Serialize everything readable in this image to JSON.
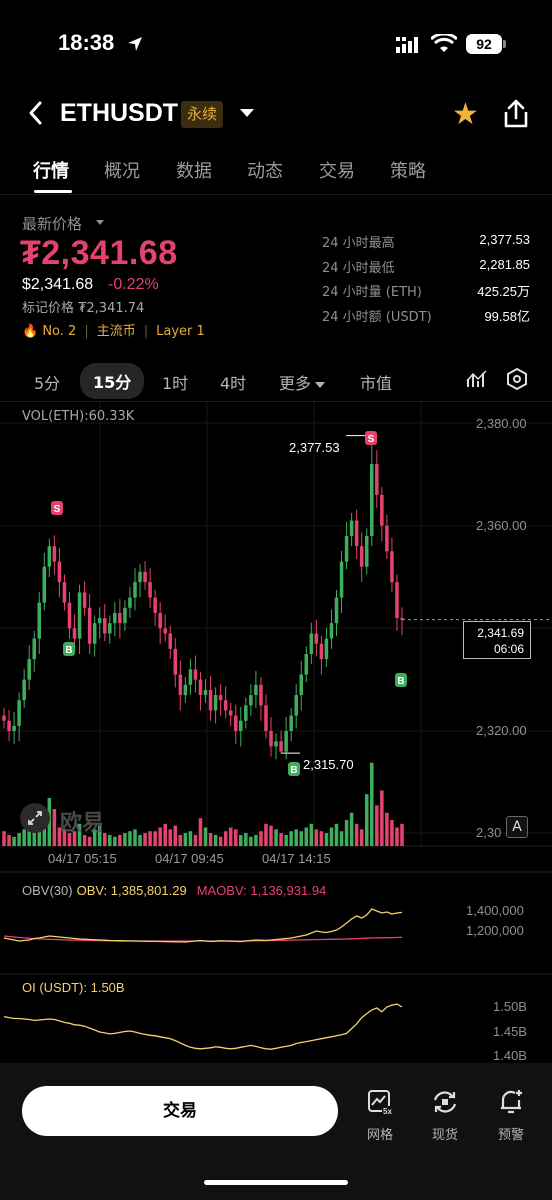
{
  "status_bar": {
    "time": "18:38",
    "battery": "92"
  },
  "header": {
    "pair": "ETHUSDT",
    "badge": "永续"
  },
  "tabs": [
    "行情",
    "概况",
    "数据",
    "动态",
    "交易",
    "策略"
  ],
  "price": {
    "label": "最新价格",
    "main": "₮2,341.68",
    "usd": "$2,341.68",
    "change": "-0.22%",
    "mark": "标记价格 ₮2,341.74",
    "tags": [
      "No. 2",
      "主流币",
      "Layer 1"
    ]
  },
  "stats": [
    {
      "label": "24 小时最高",
      "value": "2,377.53"
    },
    {
      "label": "24 小时最低",
      "value": "2,281.85"
    },
    {
      "label": "24 小时量 (ETH)",
      "value": "425.25万"
    },
    {
      "label": "24 小时额 (USDT)",
      "value": "99.58亿"
    }
  ],
  "intervals": {
    "items": [
      "5分",
      "15分",
      "1时",
      "4时",
      "更多",
      "市值"
    ],
    "active": "15分"
  },
  "chart": {
    "vol_label": "VOL(ETH):60.33K",
    "y_labels": [
      "2,380.00",
      "2,360.00",
      "2,320.00",
      "2,30"
    ],
    "x_labels": [
      "04/17 05:15",
      "04/17 09:45",
      "04/17 14:15"
    ],
    "current_price": "2,341.69",
    "countdown": "06:06",
    "high_label": "2,377.53",
    "low_label": "2,315.70",
    "watermark": "欧易",
    "a_button": "A",
    "markers": {
      "sell": "S",
      "buy": "B"
    }
  },
  "obv": {
    "title": "OBV(30)",
    "obv": "OBV: 1,385,801.29",
    "maobv": "MAOBV: 1,136,931.94",
    "y_labels": [
      "1,400,000",
      "1,200,000"
    ]
  },
  "oi": {
    "title": "OI (USDT): 1.50B",
    "y_labels": [
      "1.50B",
      "1.45B",
      "1.40B"
    ]
  },
  "bottom": {
    "trade": "交易",
    "nav": [
      "网格",
      "现货",
      "预警"
    ]
  },
  "colors": {
    "up": "#3fae5c",
    "down": "#e4436f",
    "accent": "#f3b23b"
  },
  "chart_data": {
    "type": "candlestick",
    "interval": "15m",
    "x_tick_labels": [
      "04/17 05:15",
      "04/17 09:45",
      "04/17 14:15"
    ],
    "ylim": [
      2303,
      2383
    ],
    "close_series": [
      2322,
      2320,
      2321,
      2326,
      2330,
      2334,
      2338,
      2345,
      2352,
      2356,
      2353,
      2349,
      2345,
      2340,
      2338,
      2347,
      2344,
      2337,
      2341,
      2342,
      2339,
      2341,
      2343,
      2341,
      2344,
      2346,
      2349,
      2351,
      2349,
      2346,
      2343,
      2340,
      2339,
      2336,
      2331,
      2327,
      2329,
      2332,
      2330,
      2327,
      2328,
      2324,
      2327,
      2326,
      2324,
      2323,
      2320,
      2322,
      2325,
      2327,
      2329,
      2325,
      2320,
      2317,
      2318,
      2316,
      2320,
      2323,
      2327,
      2331,
      2335,
      2339,
      2337,
      2334,
      2338,
      2341,
      2346,
      2353,
      2358,
      2361,
      2356,
      2352,
      2358,
      2372,
      2366,
      2360,
      2355,
      2349,
      2342,
      2341.68
    ],
    "volume_series": [
      8,
      6,
      5,
      7,
      9,
      12,
      10,
      18,
      14,
      26,
      20,
      10,
      9,
      7,
      8,
      12,
      6,
      5,
      9,
      11,
      7,
      6,
      5,
      6,
      7,
      8,
      9,
      6,
      7,
      8,
      8,
      10,
      12,
      9,
      11,
      6,
      7,
      8,
      6,
      15,
      10,
      7,
      6,
      5,
      8,
      10,
      9,
      6,
      7,
      5,
      6,
      8,
      12,
      11,
      9,
      7,
      6,
      8,
      9,
      8,
      10,
      12,
      9,
      8,
      7,
      10,
      12,
      8,
      14,
      18,
      12,
      9,
      28,
      45,
      22,
      30,
      18,
      14,
      10,
      12
    ],
    "obv_series": [
      1130000,
      1120000,
      1110000,
      1100000,
      1105000,
      1110000,
      1125000,
      1130000,
      1140000,
      1150000,
      1145000,
      1140000,
      1135000,
      1130000,
      1125000,
      1120000,
      1118000,
      1115000,
      1112000,
      1110000,
      1108000,
      1105000,
      1104000,
      1103000,
      1102000,
      1101000,
      1100000,
      1099000,
      1098000,
      1097000,
      1096000,
      1095000,
      1094000,
      1093000,
      1092000,
      1091000,
      1090000,
      1095000,
      1100000,
      1105000,
      1100000,
      1095000,
      1098000,
      1102000,
      1100000,
      1098000,
      1096000,
      1094000,
      1100000,
      1105000,
      1110000,
      1108000,
      1105000,
      1110000,
      1115000,
      1120000,
      1125000,
      1130000,
      1140000,
      1150000,
      1160000,
      1180000,
      1200000,
      1190000,
      1185000,
      1195000,
      1210000,
      1240000,
      1280000,
      1320000,
      1350000,
      1330000,
      1360000,
      1420000,
      1400000,
      1380000,
      1390000,
      1370000,
      1380000,
      1385801
    ],
    "maobv_series": [
      1150000,
      1145000,
      1140000,
      1135000,
      1130000,
      1127000,
      1124000,
      1121000,
      1119000,
      1117000,
      1115000,
      1113000,
      1111000,
      1110000,
      1109000,
      1108000,
      1107000,
      1106000,
      1105000,
      1104000,
      1103000,
      1102000,
      1101000,
      1100000,
      1100000,
      1100000,
      1100000,
      1100000,
      1100000,
      1100000,
      1100000,
      1100000,
      1100000,
      1100000,
      1100000,
      1100000,
      1100000,
      1100000,
      1100000,
      1100000,
      1100000,
      1100000,
      1100000,
      1100000,
      1100000,
      1100000,
      1100000,
      1100000,
      1100000,
      1101000,
      1102000,
      1103000,
      1104000,
      1105000,
      1106000,
      1107000,
      1108000,
      1109000,
      1110000,
      1111000,
      1112000,
      1113000,
      1114000,
      1115000,
      1116000,
      1117000,
      1118000,
      1119000,
      1120000,
      1122000,
      1124000,
      1126000,
      1128000,
      1130000,
      1131000,
      1132000,
      1133000,
      1134000,
      1135000,
      1136931
    ],
    "oi_series": [
      1.48,
      1.478,
      1.476,
      1.476,
      1.475,
      1.474,
      1.472,
      1.473,
      1.474,
      1.475,
      1.474,
      1.471,
      1.468,
      1.466,
      1.463,
      1.462,
      1.46,
      1.456,
      1.452,
      1.448,
      1.446,
      1.444,
      1.445,
      1.447,
      1.449,
      1.45,
      1.448,
      1.445,
      1.443,
      1.441,
      1.44,
      1.438,
      1.436,
      1.434,
      1.43,
      1.425,
      1.42,
      1.416,
      1.414,
      1.413,
      1.414,
      1.415,
      1.417,
      1.416,
      1.414,
      1.413,
      1.414,
      1.416,
      1.418,
      1.42,
      1.418,
      1.415,
      1.413,
      1.412,
      1.414,
      1.416,
      1.418,
      1.42,
      1.424,
      1.426,
      1.428,
      1.43,
      1.432,
      1.434,
      1.436,
      1.438,
      1.44,
      1.442,
      1.445,
      1.455,
      1.465,
      1.478,
      1.486,
      1.494,
      1.498,
      1.49,
      1.5,
      1.504,
      1.506,
      1.5
    ]
  }
}
